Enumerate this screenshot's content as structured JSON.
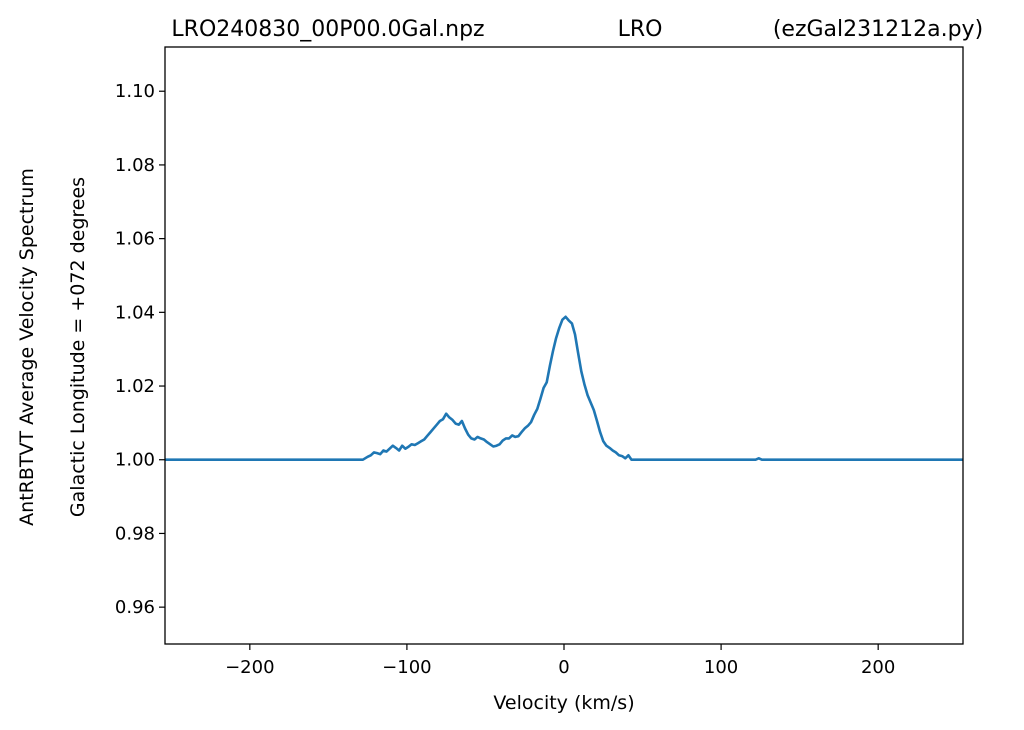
{
  "chart_data": {
    "type": "line",
    "title_left": "LRO240830_00P00.0Gal.npz",
    "title_center": "LRO",
    "title_right": "(ezGal231212a.py)",
    "xlabel": "Velocity (km/s)",
    "ylabel_line1": "AntRBTVT Average Velocity Spectrum",
    "ylabel_line2": "Galactic Longitude = +072 degrees",
    "xlim": [
      -254,
      254
    ],
    "ylim": [
      0.95,
      1.112
    ],
    "xticks": [
      {
        "value": -200,
        "label": "−200"
      },
      {
        "value": -100,
        "label": "−100"
      },
      {
        "value": 0,
        "label": "0"
      },
      {
        "value": 100,
        "label": "100"
      },
      {
        "value": 200,
        "label": "200"
      }
    ],
    "yticks": [
      {
        "value": 0.96,
        "label": "0.96"
      },
      {
        "value": 0.98,
        "label": "0.98"
      },
      {
        "value": 1.0,
        "label": "1.00"
      },
      {
        "value": 1.02,
        "label": "1.02"
      },
      {
        "value": 1.04,
        "label": "1.04"
      },
      {
        "value": 1.06,
        "label": "1.06"
      },
      {
        "value": 1.08,
        "label": "1.08"
      },
      {
        "value": 1.1,
        "label": "1.10"
      }
    ],
    "grid": false,
    "legend": "none",
    "line_color": "#1f77b4",
    "series": [
      {
        "x": [
          -254,
          -130,
          -128,
          -125,
          -123,
          -121,
          -119,
          -117,
          -115,
          -113,
          -111,
          -109,
          -107,
          -105,
          -103,
          -101,
          -99,
          -97,
          -95,
          -93,
          -91,
          -89,
          -87,
          -85,
          -83,
          -81,
          -79,
          -77,
          -75,
          -73,
          -71,
          -69,
          -67,
          -65,
          -63,
          -61,
          -59,
          -57,
          -55,
          -53,
          -51,
          -49,
          -47,
          -45,
          -43,
          -41,
          -39,
          -37,
          -35,
          -33,
          -31,
          -29,
          -27,
          -25,
          -23,
          -21,
          -19,
          -17,
          -15,
          -13,
          -11,
          -9,
          -7,
          -5,
          -3,
          -1,
          1,
          3,
          5,
          7,
          9,
          11,
          13,
          15,
          17,
          19,
          21,
          23,
          25,
          27,
          29,
          31,
          33,
          35,
          37,
          39,
          41,
          43,
          45,
          100,
          122,
          124,
          126,
          254
        ],
        "y": [
          1.0,
          1.0,
          1.0,
          1.0008,
          1.0012,
          1.002,
          1.0018,
          1.0015,
          1.0025,
          1.0022,
          1.003,
          1.0038,
          1.0032,
          1.0025,
          1.0038,
          1.003,
          1.0035,
          1.0042,
          1.004,
          1.0045,
          1.005,
          1.0055,
          1.0065,
          1.0075,
          1.0085,
          1.0095,
          1.0105,
          1.011,
          1.0125,
          1.0115,
          1.0108,
          1.0098,
          1.0095,
          1.0105,
          1.0085,
          1.0068,
          1.0058,
          1.0055,
          1.0062,
          1.0058,
          1.0055,
          1.0048,
          1.0042,
          1.0036,
          1.0038,
          1.0042,
          1.0052,
          1.0058,
          1.0058,
          1.0066,
          1.0062,
          1.0064,
          1.0075,
          1.0085,
          1.0092,
          1.0102,
          1.0122,
          1.0138,
          1.0165,
          1.0195,
          1.021,
          1.0255,
          1.0295,
          1.033,
          1.0358,
          1.038,
          1.0388,
          1.0378,
          1.037,
          1.034,
          1.029,
          1.024,
          1.0205,
          1.0175,
          1.0155,
          1.0135,
          1.0105,
          1.0075,
          1.005,
          1.0038,
          1.0032,
          1.0025,
          1.002,
          1.0012,
          1.001,
          1.0004,
          1.0012,
          1.0,
          1.0,
          1.0,
          1.0,
          1.0004,
          1.0,
          1.0
        ]
      }
    ]
  }
}
